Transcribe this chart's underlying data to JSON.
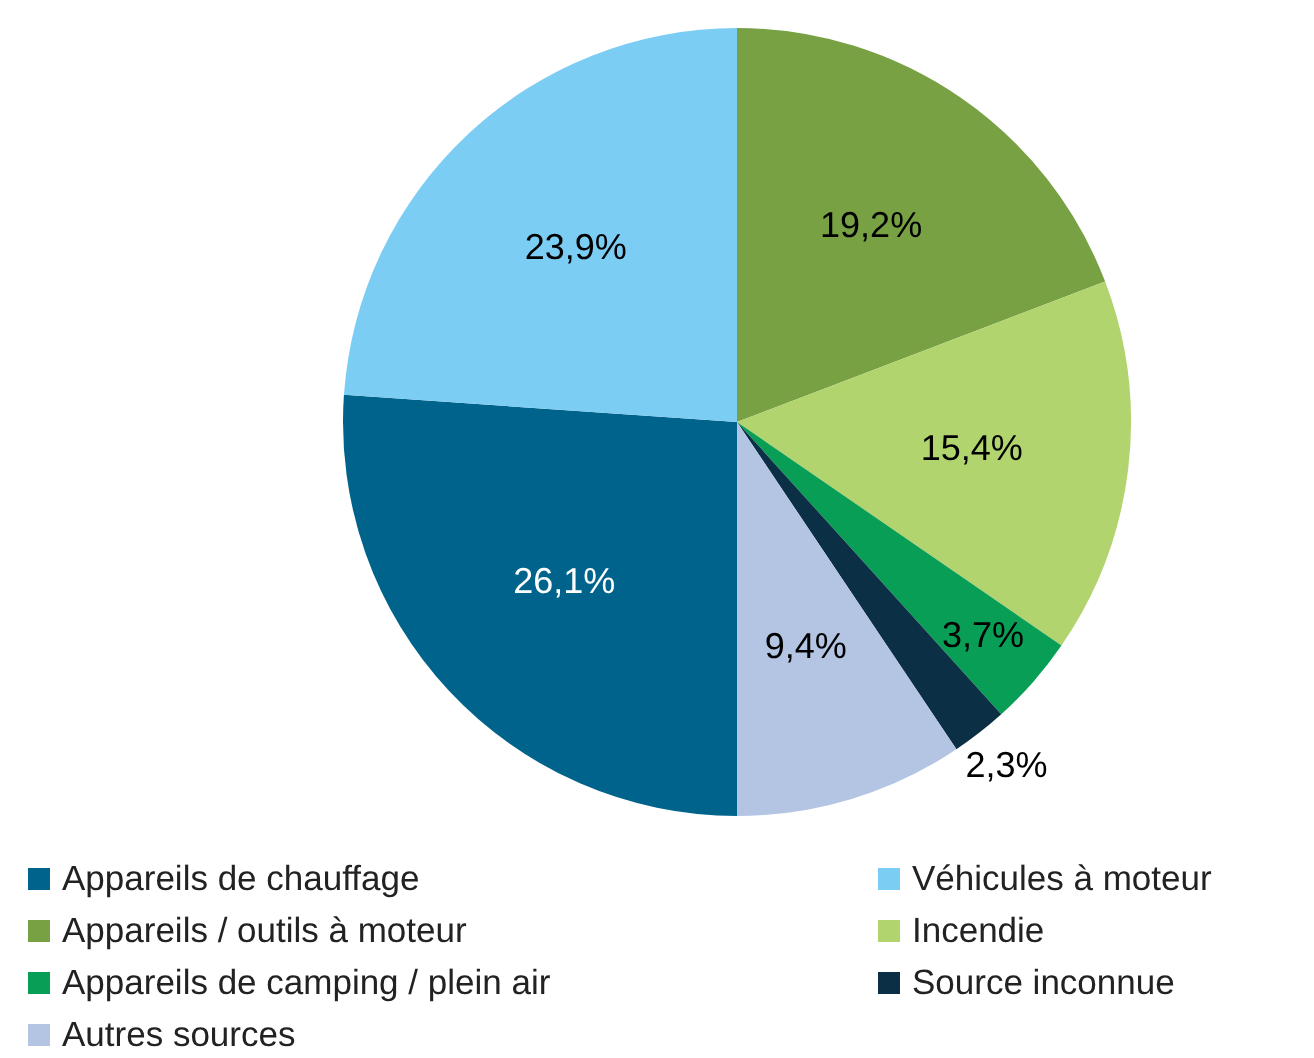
{
  "chart_data": {
    "type": "pie",
    "categories": [
      "Appareils de chauffage",
      "Véhicules à moteur",
      "Appareils / outils à moteur",
      "Incendie",
      "Appareils de camping / plein air",
      "Source inconnue",
      "Autres sources"
    ],
    "values": [
      26.1,
      23.9,
      19.2,
      15.4,
      3.7,
      2.3,
      9.4
    ],
    "value_labels": [
      "26,1%",
      "23,9%",
      "19,2%",
      "15,4%",
      "3,7%",
      "2,3%",
      "9,4%"
    ],
    "colors": [
      "#00638b",
      "#7ccdf4",
      "#77a143",
      "#b2d46e",
      "#089e56",
      "#0b2f45",
      "#b4c5e4"
    ],
    "legend": "bottom"
  }
}
